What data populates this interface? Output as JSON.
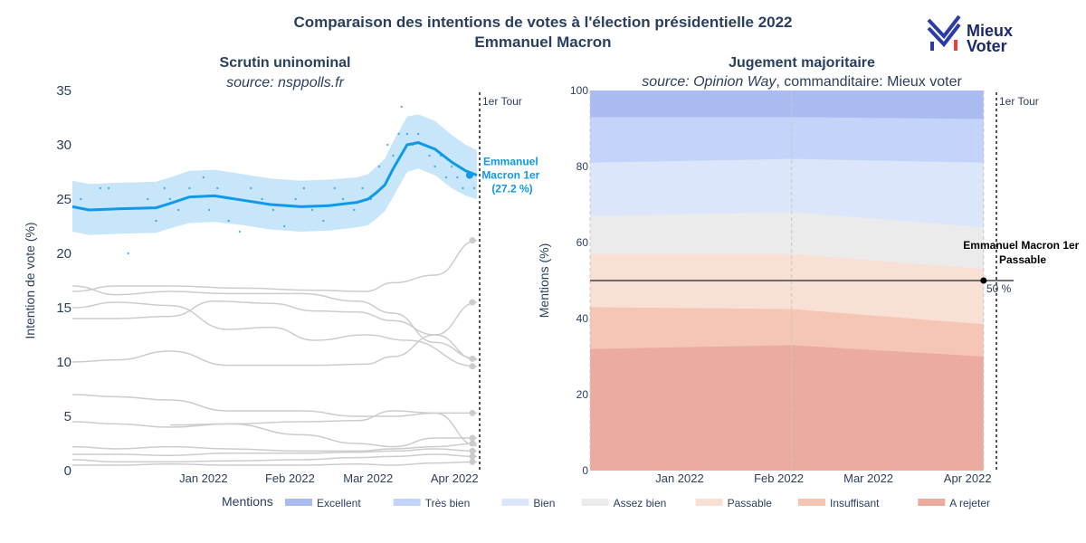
{
  "title_line1": "Comparaison des intentions de votes à l'élection présidentielle 2022",
  "title_line2": "Emmanuel Macron",
  "logo": {
    "line1": "Mieux",
    "line2": "Voter",
    "icon": "mieux-voter-logo-icon"
  },
  "colors": {
    "macron": "#0f99e8",
    "macron_band": "#c7e6fa",
    "others": "#cccccc",
    "excellent": "#a9bbf0",
    "tres_bien": "#c3d3f9",
    "bien": "#dce6fa",
    "assez_bien": "#ebebeb",
    "passable": "#f9e0d5",
    "insuffisant": "#f6c6b5",
    "a_rejeter": "#ecab9f"
  },
  "chart_data": [
    {
      "type": "line",
      "title": "Scrutin uninominal",
      "subtitle": "source: nsppolls.fr",
      "ylabel": "Intention de vote (%)",
      "xlim": [
        "2021-11-15",
        "2022-04-10"
      ],
      "ylim": [
        0,
        35
      ],
      "yticks": [
        0,
        5,
        10,
        15,
        20,
        25,
        30,
        35
      ],
      "xticks": [
        {
          "date": "2022-01-01",
          "label": "Jan 2022"
        },
        {
          "date": "2022-02-01",
          "label": "Feb 2022"
        },
        {
          "date": "2022-03-01",
          "label": "Mar 2022"
        },
        {
          "date": "2022-04-01",
          "label": "Apr 2022"
        }
      ],
      "first_round": {
        "date": "2022-04-10",
        "label": "1er Tour"
      },
      "annotation": {
        "lines": [
          "Emmanuel",
          "Macron 1er",
          "(27.2 %)"
        ]
      },
      "macron": {
        "name": "Emmanuel Macron",
        "x": [
          "2021-11-15",
          "2021-11-21",
          "2021-12-01",
          "2021-12-15",
          "2021-12-20",
          "2021-12-27",
          "2022-01-05",
          "2022-01-15",
          "2022-01-25",
          "2022-02-05",
          "2022-02-15",
          "2022-02-25",
          "2022-03-01",
          "2022-03-04",
          "2022-03-07",
          "2022-03-10",
          "2022-03-15",
          "2022-03-19",
          "2022-03-25",
          "2022-03-31",
          "2022-04-05",
          "2022-04-09"
        ],
        "y": [
          24.3,
          24.0,
          24.1,
          24.2,
          24.6,
          25.2,
          25.3,
          24.9,
          24.5,
          24.3,
          24.4,
          24.7,
          25.0,
          25.6,
          26.3,
          27.8,
          30.0,
          30.2,
          29.6,
          28.4,
          27.6,
          27.2
        ],
        "lower": [
          22.0,
          21.7,
          21.8,
          21.9,
          22.3,
          22.8,
          22.9,
          22.6,
          22.2,
          22.0,
          22.1,
          22.4,
          22.6,
          23.2,
          23.9,
          25.2,
          27.5,
          27.8,
          27.2,
          26.0,
          25.3,
          25.0
        ],
        "upper": [
          26.7,
          26.4,
          26.5,
          26.6,
          27.0,
          27.6,
          27.7,
          27.3,
          26.9,
          26.7,
          26.8,
          27.0,
          27.3,
          28.0,
          28.7,
          30.3,
          32.6,
          32.8,
          32.2,
          30.9,
          30.0,
          29.5
        ]
      },
      "polls_approx": [
        [
          "2021-11-18",
          25
        ],
        [
          "2021-11-25",
          26
        ],
        [
          "2021-11-28",
          26
        ],
        [
          "2021-12-05",
          20
        ],
        [
          "2021-12-12",
          25
        ],
        [
          "2021-12-15",
          23
        ],
        [
          "2021-12-18",
          26
        ],
        [
          "2021-12-20",
          25
        ],
        [
          "2021-12-23",
          24
        ],
        [
          "2021-12-27",
          26
        ],
        [
          "2022-01-01",
          27
        ],
        [
          "2022-01-03",
          24
        ],
        [
          "2022-01-06",
          26
        ],
        [
          "2022-01-10",
          23
        ],
        [
          "2022-01-14",
          22
        ],
        [
          "2022-01-18",
          26
        ],
        [
          "2022-01-22",
          25
        ],
        [
          "2022-01-26",
          24
        ],
        [
          "2022-01-30",
          22.5
        ],
        [
          "2022-02-03",
          25
        ],
        [
          "2022-02-06",
          26
        ],
        [
          "2022-02-09",
          24
        ],
        [
          "2022-02-13",
          23
        ],
        [
          "2022-02-17",
          26
        ],
        [
          "2022-02-20",
          25
        ],
        [
          "2022-02-24",
          24
        ],
        [
          "2022-02-27",
          26
        ],
        [
          "2022-03-02",
          25
        ],
        [
          "2022-03-05",
          28
        ],
        [
          "2022-03-08",
          30
        ],
        [
          "2022-03-10",
          29
        ],
        [
          "2022-03-12",
          31
        ],
        [
          "2022-03-13",
          33.5
        ],
        [
          "2022-03-15",
          31
        ],
        [
          "2022-03-17",
          30
        ],
        [
          "2022-03-19",
          31
        ],
        [
          "2022-03-21",
          30
        ],
        [
          "2022-03-23",
          29
        ],
        [
          "2022-03-25",
          28
        ],
        [
          "2022-03-27",
          29
        ],
        [
          "2022-03-29",
          27
        ],
        [
          "2022-03-31",
          28
        ],
        [
          "2022-04-02",
          27
        ],
        [
          "2022-04-04",
          26
        ],
        [
          "2022-04-06",
          27
        ],
        [
          "2022-04-08",
          26
        ]
      ],
      "other_candidates": [
        {
          "x": [
            "2021-11-15",
            "2021-12-01",
            "2021-12-20",
            "2022-01-15",
            "2022-02-10",
            "2022-02-28",
            "2022-03-10",
            "2022-03-25",
            "2022-04-09"
          ],
          "y": [
            16.5,
            17.0,
            17.0,
            16.8,
            16.6,
            16.5,
            17.3,
            18.0,
            21.2
          ]
        },
        {
          "x": [
            "2021-11-15",
            "2021-12-01",
            "2021-12-20",
            "2022-01-10",
            "2022-02-05",
            "2022-02-25",
            "2022-03-10",
            "2022-03-25",
            "2022-04-09"
          ],
          "y": [
            17.0,
            16.2,
            16.5,
            16.3,
            16.3,
            15.6,
            14.5,
            11.8,
            10.3
          ]
        },
        {
          "x": [
            "2021-11-15",
            "2021-12-01",
            "2021-12-20",
            "2022-01-05",
            "2022-01-25",
            "2022-02-10",
            "2022-02-25",
            "2022-03-10",
            "2022-03-25",
            "2022-04-09"
          ],
          "y": [
            14.0,
            14.0,
            14.2,
            15.6,
            15.4,
            14.7,
            14.6,
            13.8,
            12.5,
            10.2
          ]
        },
        {
          "x": [
            "2021-11-15",
            "2021-12-01",
            "2021-12-20",
            "2022-01-10",
            "2022-01-25",
            "2022-02-10",
            "2022-02-28",
            "2022-03-10",
            "2022-03-25",
            "2022-04-09"
          ],
          "y": [
            10.0,
            10.2,
            11.0,
            9.7,
            9.7,
            9.7,
            9.8,
            10.5,
            12.5,
            15.5
          ]
        },
        {
          "x": [
            "2021-11-15",
            "2021-12-01",
            "2021-12-20",
            "2022-01-10",
            "2022-01-25",
            "2022-02-10",
            "2022-02-28",
            "2022-03-15",
            "2022-04-09"
          ],
          "y": [
            15.0,
            15.5,
            15.2,
            13.0,
            13.2,
            12.0,
            12.5,
            12.0,
            9.6
          ]
        },
        {
          "x": [
            "2021-11-15",
            "2021-12-01",
            "2021-12-20",
            "2022-01-10",
            "2022-02-05",
            "2022-02-25",
            "2022-03-10",
            "2022-03-25",
            "2022-04-09"
          ],
          "y": [
            7.0,
            6.8,
            6.5,
            5.5,
            5.5,
            5.0,
            5.0,
            5.3,
            5.3
          ]
        },
        {
          "x": [
            "2021-11-15",
            "2021-12-01",
            "2021-12-20",
            "2022-01-10",
            "2022-02-05",
            "2022-02-25",
            "2022-03-10",
            "2022-03-25",
            "2022-04-09"
          ],
          "y": [
            4.5,
            4.3,
            4.0,
            4.3,
            3.3,
            2.5,
            2.2,
            3.0,
            3.0
          ]
        },
        {
          "x": [
            "2021-12-20",
            "2022-01-10",
            "2022-02-05",
            "2022-02-25",
            "2022-03-10",
            "2022-03-25",
            "2022-04-09"
          ],
          "y": [
            4.2,
            4.3,
            4.5,
            4.6,
            5.5,
            5.3,
            2.3
          ]
        },
        {
          "x": [
            "2021-11-15",
            "2021-12-01",
            "2021-12-20",
            "2022-01-10",
            "2022-02-05",
            "2022-02-25",
            "2022-03-10",
            "2022-03-25",
            "2022-04-09"
          ],
          "y": [
            2.2,
            2.0,
            2.2,
            2.0,
            1.8,
            1.8,
            2.0,
            2.2,
            2.5
          ]
        },
        {
          "x": [
            "2021-11-15",
            "2021-12-01",
            "2021-12-20",
            "2022-01-10",
            "2022-02-05",
            "2022-02-25",
            "2022-03-10",
            "2022-03-25",
            "2022-04-09"
          ],
          "y": [
            1.5,
            1.5,
            1.4,
            1.6,
            1.6,
            1.7,
            1.8,
            2.0,
            1.8
          ]
        },
        {
          "x": [
            "2021-11-15",
            "2021-12-01",
            "2021-12-20",
            "2022-01-10",
            "2022-02-05",
            "2022-02-25",
            "2022-03-10",
            "2022-03-25",
            "2022-04-09"
          ],
          "y": [
            1.0,
            0.8,
            0.8,
            0.9,
            1.0,
            1.2,
            1.3,
            1.5,
            1.3
          ]
        },
        {
          "x": [
            "2021-11-15",
            "2021-12-01",
            "2021-12-20",
            "2022-01-10",
            "2022-02-05",
            "2022-02-25",
            "2022-03-10",
            "2022-03-25",
            "2022-04-09"
          ],
          "y": [
            0.5,
            0.5,
            0.6,
            0.5,
            0.5,
            0.6,
            0.5,
            0.7,
            0.8
          ]
        }
      ],
      "others_endpoints": [
        21.2,
        15.5,
        10.3,
        9.6,
        5.3,
        3.0,
        2.5,
        1.8,
        1.3,
        0.8
      ]
    },
    {
      "type": "area",
      "title": "Jugement majoritaire",
      "subtitle_italic": "source: Opinion Way",
      "subtitle_rest": ", commanditaire: Mieux voter",
      "ylabel": "Mentions (%)",
      "xlim": [
        "2021-12-04",
        "2022-04-10"
      ],
      "ylim": [
        0,
        100
      ],
      "yticks": [
        0,
        20,
        40,
        60,
        80,
        100
      ],
      "xticks": [
        {
          "date": "2022-01-01",
          "label": "Jan 2022"
        },
        {
          "date": "2022-02-01",
          "label": "Feb 2022"
        },
        {
          "date": "2022-03-01",
          "label": "Mar 2022"
        },
        {
          "date": "2022-04-01",
          "label": "Apr 2022"
        }
      ],
      "first_round": {
        "date": "2022-04-10",
        "label": "1er Tour"
      },
      "survey_dates": [
        "2021-12-04",
        "2022-02-05",
        "2022-04-06"
      ],
      "cumulative": {
        "a_rejeter": [
          32,
          33,
          30
        ],
        "insuffisant": [
          43,
          42.5,
          38.5
        ],
        "passable": [
          57,
          57,
          53
        ],
        "assez_bien": [
          67,
          68,
          64
        ],
        "bien": [
          81,
          82,
          81
        ],
        "tres_bien": [
          93,
          93,
          92.5
        ],
        "excellent": [
          100,
          100,
          100
        ]
      },
      "median_line": {
        "value": 50,
        "label": "50 %"
      },
      "annotation": {
        "lines": [
          "Emmanuel Macron 1er",
          "Passable"
        ]
      },
      "legend_title": "Mentions",
      "legend": [
        {
          "key": "excellent",
          "label": "Excellent"
        },
        {
          "key": "tres_bien",
          "label": "Très bien"
        },
        {
          "key": "bien",
          "label": "Bien"
        },
        {
          "key": "assez_bien",
          "label": "Assez bien"
        },
        {
          "key": "passable",
          "label": "Passable"
        },
        {
          "key": "insuffisant",
          "label": "Insuffisant"
        },
        {
          "key": "a_rejeter",
          "label": "A rejeter"
        }
      ]
    }
  ]
}
